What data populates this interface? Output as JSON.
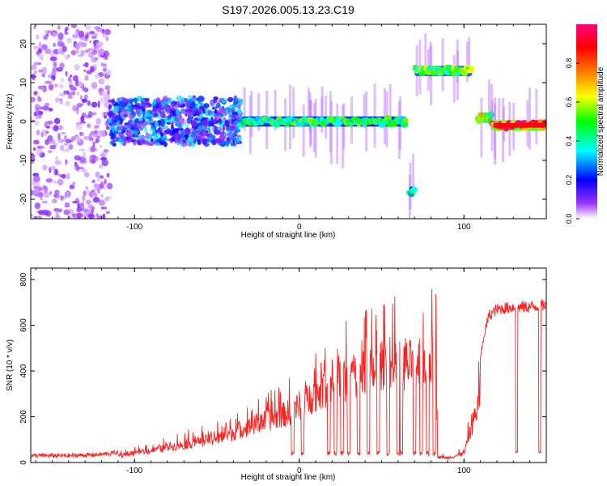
{
  "figure": {
    "title": "S197.2026.005.13.23.C19"
  },
  "chart_data": [
    {
      "type": "heatmap",
      "name": "spectrogram",
      "title": "S197.2026.005.13.23.C19",
      "xlabel": "Height of straight line (km)",
      "ylabel": "Frequency (Hz)",
      "xlim": [
        -163,
        150
      ],
      "ylim": [
        -25,
        25
      ],
      "x_ticks": [
        -100,
        0,
        100
      ],
      "y_ticks": [
        -20,
        -10,
        0,
        10,
        20
      ],
      "colorbar": {
        "label": "Normalized spectral amplitude",
        "range": [
          0,
          1
        ],
        "ticks": [
          0.0,
          0.2,
          0.4,
          0.6,
          0.8
        ],
        "colors": [
          "#ffffff",
          "#9b30ff",
          "#0000ff",
          "#00ffff",
          "#00ff00",
          "#ffff00",
          "#ff8000",
          "#ff0000",
          "#ff0080"
        ]
      },
      "features": [
        {
          "x_range": [
            -163,
            -115
          ],
          "freq_range": [
            -25,
            25
          ],
          "amplitude": 0.12,
          "description": "broadband noise"
        },
        {
          "x_range": [
            -115,
            -35
          ],
          "freq_range": [
            -6,
            6
          ],
          "amplitude": 0.3,
          "description": "diffuse signal"
        },
        {
          "x_range": [
            -35,
            65
          ],
          "freq_center": 0,
          "amplitude": 0.45,
          "description": "signal near 0 Hz"
        },
        {
          "x_range": [
            67,
            70
          ],
          "freq_center": -18,
          "amplitude": 0.4
        },
        {
          "x_range": [
            70,
            105
          ],
          "freq_center": 13,
          "amplitude": 0.5
        },
        {
          "x_range": [
            108,
            117
          ],
          "freq_center": 1,
          "amplitude": 0.6
        },
        {
          "x_range": [
            117,
            150
          ],
          "freq_center": -1,
          "amplitude": 0.9
        }
      ]
    },
    {
      "type": "line",
      "name": "snr",
      "xlabel": "Height of straight line (km)",
      "ylabel": "SNR (10 * v/v)",
      "xlim": [
        -163,
        150
      ],
      "ylim": [
        0,
        850
      ],
      "x_ticks": [
        -100,
        0,
        100
      ],
      "y_ticks": [
        0,
        200,
        400,
        600,
        800
      ],
      "series": [
        {
          "name": "SNR",
          "color": "#ff2020",
          "x": [
            -163,
            -140,
            -120,
            -110,
            -100,
            -90,
            -80,
            -70,
            -60,
            -50,
            -40,
            -30,
            -20,
            -10,
            -5,
            0,
            5,
            10,
            20,
            30,
            40,
            50,
            60,
            70,
            75,
            80,
            83,
            84,
            90,
            100,
            105,
            110,
            112,
            115,
            120,
            130,
            140,
            150
          ],
          "values": [
            30,
            30,
            35,
            45,
            60,
            80,
            100,
            120,
            140,
            160,
            200,
            240,
            280,
            320,
            340,
            380,
            420,
            470,
            520,
            560,
            600,
            620,
            640,
            660,
            680,
            700,
            720,
            40,
            30,
            60,
            250,
            450,
            550,
            640,
            670,
            680,
            680,
            690
          ]
        }
      ],
      "dropouts": {
        "x": [
          -4,
          2,
          18,
          22,
          26,
          30,
          36,
          42,
          48,
          54,
          60,
          62,
          70,
          74,
          78,
          82,
          132,
          146
        ],
        "value": 40
      }
    }
  ]
}
